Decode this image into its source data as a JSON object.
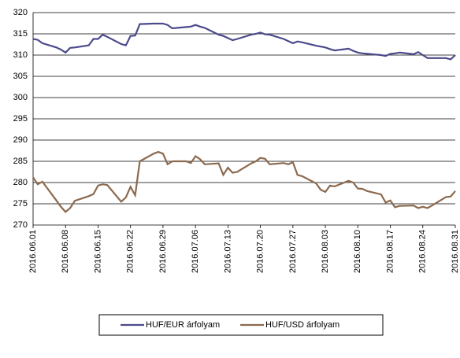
{
  "chart_data": {
    "type": "line",
    "x": [
      "2016.06.01",
      "2016.06.02",
      "2016.06.03",
      "2016.06.06",
      "2016.06.07",
      "2016.06.08",
      "2016.06.09",
      "2016.06.10",
      "2016.06.13",
      "2016.06.14",
      "2016.06.15",
      "2016.06.16",
      "2016.06.17",
      "2016.06.20",
      "2016.06.21",
      "2016.06.22",
      "2016.06.23",
      "2016.06.24",
      "2016.06.27",
      "2016.06.28",
      "2016.06.29",
      "2016.06.30",
      "2016.07.01",
      "2016.07.04",
      "2016.07.05",
      "2016.07.06",
      "2016.07.07",
      "2016.07.08",
      "2016.07.11",
      "2016.07.12",
      "2016.07.13",
      "2016.07.14",
      "2016.07.15",
      "2016.07.18",
      "2016.07.19",
      "2016.07.20",
      "2016.07.21",
      "2016.07.22",
      "2016.07.25",
      "2016.07.26",
      "2016.07.27",
      "2016.07.28",
      "2016.07.29",
      "2016.08.01",
      "2016.08.02",
      "2016.08.03",
      "2016.08.04",
      "2016.08.05",
      "2016.08.08",
      "2016.08.09",
      "2016.08.10",
      "2016.08.11",
      "2016.08.12",
      "2016.08.15",
      "2016.08.16",
      "2016.08.17",
      "2016.08.18",
      "2016.08.19",
      "2016.08.22",
      "2016.08.23",
      "2016.08.24",
      "2016.08.25",
      "2016.08.26",
      "2016.08.29",
      "2016.08.30",
      "2016.08.31"
    ],
    "series": [
      {
        "name": "HUF/EUR árfolyam",
        "color": "#4b4a8c",
        "values": [
          313.8,
          313.6,
          312.8,
          311.8,
          311.3,
          310.6,
          311.7,
          311.8,
          312.3,
          313.8,
          313.8,
          314.8,
          314.3,
          312.6,
          312.3,
          314.5,
          314.6,
          317.3,
          317.4,
          317.4,
          317.4,
          317.1,
          316.3,
          316.6,
          316.7,
          317.1,
          316.7,
          316.4,
          314.8,
          314.5,
          314.0,
          313.5,
          313.8,
          314.8,
          315.0,
          315.3,
          314.9,
          314.8,
          313.8,
          313.3,
          312.8,
          313.2,
          313.0,
          312.2,
          312.0,
          311.8,
          311.4,
          311.1,
          311.5,
          311.0,
          310.6,
          310.4,
          310.3,
          310.0,
          309.8,
          310.3,
          310.4,
          310.6,
          310.2,
          310.7,
          310.0,
          309.3,
          309.3,
          309.3,
          309.0,
          310.0
        ]
      },
      {
        "name": "HUF/USD árfolyam",
        "color": "#8b6a4f",
        "values": [
          281.2,
          279.6,
          280.2,
          275.8,
          274.3,
          273.1,
          274.0,
          275.7,
          276.8,
          277.3,
          279.3,
          279.6,
          279.4,
          275.5,
          276.5,
          279.0,
          277.0,
          285.0,
          286.8,
          287.2,
          286.8,
          284.3,
          285.0,
          285.0,
          284.6,
          286.2,
          285.5,
          284.3,
          284.5,
          281.8,
          283.5,
          282.3,
          282.5,
          284.5,
          285.0,
          285.8,
          285.6,
          284.3,
          284.6,
          284.3,
          284.8,
          281.8,
          281.5,
          279.8,
          278.3,
          277.8,
          279.3,
          279.1,
          280.4,
          280.0,
          278.6,
          278.5,
          278.0,
          277.2,
          275.3,
          275.8,
          274.2,
          274.5,
          274.6,
          274.0,
          274.3,
          274.0,
          274.6,
          276.6,
          276.7,
          278.0
        ]
      }
    ],
    "xlim": [
      "2016.06.01",
      "2016.08.31"
    ],
    "xticks": [
      "2016.06.01",
      "2016.06.08",
      "2016.06.15",
      "2016.06.22",
      "2016.06.29",
      "2016.07.06",
      "2016.07.13",
      "2016.07.20",
      "2016.07.27",
      "2016.08.03",
      "2016.08.10",
      "2016.08.17",
      "2016.08.24",
      "2016.08.31"
    ],
    "ylim": [
      270,
      320
    ],
    "yticks": [
      270,
      275,
      280,
      285,
      290,
      295,
      300,
      305,
      310,
      315,
      320
    ],
    "grid": true,
    "legend": "bottom"
  }
}
